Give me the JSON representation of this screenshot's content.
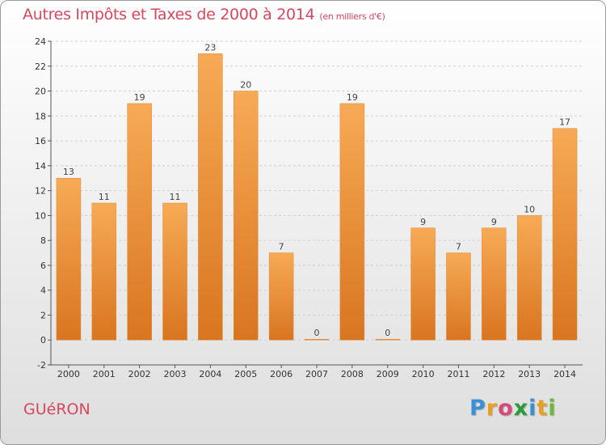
{
  "title": "Autres Impôts et Taxes de 2000 à 2014",
  "subtitle": "(en milliers d'€)",
  "commune": "GUéRON",
  "logo": [
    "P",
    "r",
    "o",
    "x",
    "i",
    "t",
    "i"
  ],
  "colors": {
    "bar_light": "#f7aa55",
    "bar_dark": "#d97520",
    "title": "#d7475e"
  },
  "chart_data": {
    "type": "bar",
    "categories": [
      "2000",
      "2001",
      "2002",
      "2003",
      "2004",
      "2005",
      "2006",
      "2007",
      "2008",
      "2009",
      "2010",
      "2011",
      "2012",
      "2013",
      "2014"
    ],
    "values": [
      13,
      11,
      19,
      11,
      23,
      20,
      7,
      0,
      19,
      0,
      9,
      7,
      9,
      10,
      17
    ],
    "yticks": [
      -2,
      0,
      2,
      4,
      6,
      8,
      10,
      12,
      14,
      16,
      18,
      20,
      22,
      24
    ],
    "ylim": [
      -2,
      24
    ],
    "grid": true
  }
}
